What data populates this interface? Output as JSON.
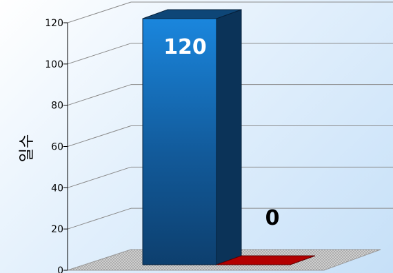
{
  "chart_data": {
    "type": "bar",
    "style": "3d",
    "categories": [
      "",
      ""
    ],
    "values": [
      120,
      0
    ],
    "data_labels": [
      "120",
      "0"
    ],
    "ylabel": "일수",
    "xlabel": "",
    "title": "",
    "ylim": [
      0,
      120
    ],
    "yticks": [
      0,
      20,
      40,
      60,
      80,
      100,
      120
    ],
    "grid": true,
    "legend": "none",
    "colors": {
      "bar_1": "#1a7fd4",
      "bar_2": "#b30000",
      "label_1": "#ffffff",
      "label_2": "#000000",
      "gridline": "#8a8a8a"
    }
  }
}
